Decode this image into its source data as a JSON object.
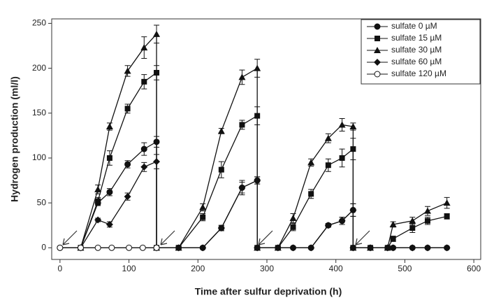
{
  "chart_data": {
    "type": "line",
    "x_label": "Time after sulfur deprivation (h)",
    "y_label": "Hydrogen production (ml/l)",
    "xlim": [
      -12,
      610
    ],
    "ylim": [
      -13,
      255
    ],
    "xticks": [
      0,
      100,
      200,
      300,
      400,
      500,
      600
    ],
    "yticks": [
      0,
      50,
      100,
      150,
      200,
      250
    ],
    "legend": "upper right",
    "series": [
      {
        "name": "sulfate 0 µM",
        "color": "#111",
        "marker": "circle",
        "x": [
          0,
          30,
          55,
          72,
          98,
          122,
          140,
          140,
          172,
          207,
          234,
          264,
          286,
          286,
          316,
          338,
          364,
          389,
          409,
          425,
          425,
          450,
          475,
          483,
          511,
          533,
          561
        ],
        "values": [
          0,
          0,
          50,
          62,
          93,
          110,
          118,
          0,
          0,
          0,
          22,
          67,
          75,
          0,
          0,
          0,
          0,
          25,
          30,
          42,
          0,
          0,
          0,
          0,
          0,
          0,
          0
        ],
        "errors": [
          0,
          0,
          3,
          4,
          4,
          7,
          6,
          0,
          0,
          0,
          3,
          6,
          4,
          0,
          0,
          0,
          0,
          2,
          4,
          7,
          0,
          0,
          0,
          0,
          0,
          0,
          0
        ]
      },
      {
        "name": "sulfate 15 µM",
        "color": "#111",
        "marker": "square",
        "x": [
          30,
          55,
          72,
          98,
          122,
          140,
          140,
          172,
          207,
          234,
          264,
          286,
          286,
          316,
          338,
          364,
          389,
          409,
          425,
          425,
          450,
          475,
          483,
          511,
          533,
          561
        ],
        "values": [
          0,
          52,
          100,
          155,
          185,
          195,
          0,
          0,
          34,
          87,
          137,
          147,
          0,
          0,
          23,
          60,
          92,
          100,
          110,
          0,
          0,
          0,
          10,
          22,
          30,
          35
        ],
        "errors": [
          0,
          4,
          8,
          5,
          8,
          8,
          0,
          0,
          4,
          9,
          5,
          10,
          0,
          0,
          4,
          5,
          7,
          10,
          12,
          0,
          0,
          0,
          3,
          5,
          4,
          3
        ]
      },
      {
        "name": "sulfate 30 µM",
        "color": "#111",
        "marker": "triangle",
        "x": [
          30,
          55,
          72,
          98,
          122,
          140,
          140,
          172,
          207,
          234,
          264,
          286,
          286,
          316,
          338,
          364,
          389,
          409,
          425,
          425,
          450,
          475,
          483,
          511,
          533,
          561
        ],
        "values": [
          0,
          65,
          135,
          197,
          223,
          238,
          0,
          0,
          45,
          130,
          190,
          200,
          0,
          0,
          33,
          95,
          122,
          137,
          135,
          0,
          0,
          0,
          26,
          30,
          41,
          50
        ],
        "errors": [
          0,
          5,
          4,
          6,
          12,
          10,
          0,
          0,
          4,
          3,
          8,
          10,
          0,
          0,
          5,
          4,
          5,
          7,
          4,
          0,
          0,
          0,
          3,
          4,
          5,
          6
        ]
      },
      {
        "name": "sulfate 60 µM",
        "color": "#111",
        "marker": "diamond",
        "x": [
          30,
          55,
          72,
          98,
          122,
          140,
          140,
          172,
          207,
          234,
          264,
          286,
          286,
          316,
          338,
          364,
          389,
          409,
          425,
          425,
          450,
          475,
          483,
          511,
          533,
          561
        ],
        "values": [
          0,
          31,
          26,
          57,
          90,
          96,
          0,
          0,
          0,
          22,
          67,
          75,
          0,
          0,
          0,
          0,
          25,
          30,
          42,
          0,
          0,
          0,
          0,
          0,
          0,
          0
        ],
        "errors": [
          0,
          2,
          3,
          4,
          5,
          8,
          0,
          0,
          0,
          3,
          8,
          4,
          0,
          0,
          0,
          0,
          2,
          4,
          7,
          0,
          0,
          0,
          0,
          0,
          0,
          0
        ]
      },
      {
        "name": "sulfate 120 µM",
        "color": "#111",
        "marker": "open-circle",
        "x": [
          0,
          30,
          55,
          75,
          100,
          120,
          140
        ],
        "values": [
          0,
          0,
          0,
          0,
          0,
          0,
          0
        ],
        "errors": [
          0,
          0,
          0,
          0,
          0,
          0,
          0
        ]
      }
    ]
  }
}
